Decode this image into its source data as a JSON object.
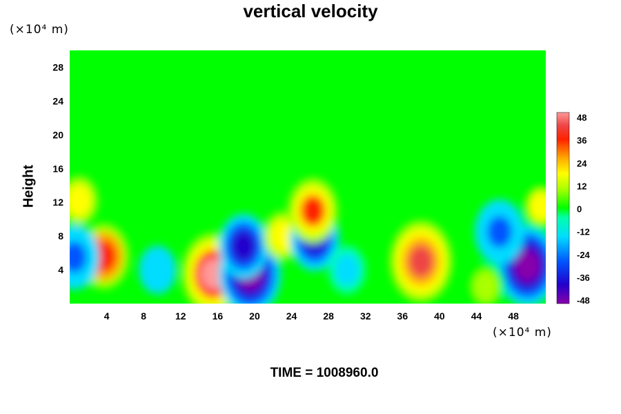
{
  "chart_data": {
    "type": "heatmap",
    "title": "vertical velocity",
    "ylabel": "Height",
    "xlabel": "",
    "x_unit_label": "(×10⁴ m)",
    "y_unit_label": "(×10⁴ m)",
    "xlim": [
      0,
      51.5
    ],
    "ylim": [
      0,
      30
    ],
    "x_ticks": [
      "4",
      "8",
      "12",
      "16",
      "20",
      "24",
      "28",
      "32",
      "36",
      "40",
      "44",
      "48"
    ],
    "y_ticks": [
      "4",
      "8",
      "12",
      "16",
      "20",
      "24",
      "28"
    ],
    "colorbar": {
      "range": [
        -48,
        48
      ],
      "ticks": [
        "48",
        "36",
        "24",
        "12",
        "0",
        "-12",
        "-24",
        "-36",
        "-48"
      ]
    },
    "features": [
      {
        "x": 3.7,
        "y": 5.6,
        "value": 40
      },
      {
        "x": 1.0,
        "y": 12.2,
        "value": 20
      },
      {
        "x": 0.5,
        "y": 5.5,
        "value": -30
      },
      {
        "x": 15.5,
        "y": 3.5,
        "value": 48
      },
      {
        "x": 19.5,
        "y": 3.5,
        "value": -48
      },
      {
        "x": 18.8,
        "y": 6.8,
        "value": -40
      },
      {
        "x": 23.0,
        "y": 8.0,
        "value": 22
      },
      {
        "x": 26.5,
        "y": 7.7,
        "value": -40
      },
      {
        "x": 26.3,
        "y": 11.0,
        "value": 36
      },
      {
        "x": 38.0,
        "y": 5.0,
        "value": 44
      },
      {
        "x": 49.5,
        "y": 4.5,
        "value": -46
      },
      {
        "x": 51.0,
        "y": 11.5,
        "value": 18
      },
      {
        "x": 9.5,
        "y": 4.0,
        "value": -20
      },
      {
        "x": 30.0,
        "y": 4.0,
        "value": -12
      },
      {
        "x": 46.5,
        "y": 8.5,
        "value": -30
      },
      {
        "x": 45.0,
        "y": 2.0,
        "value": 14
      }
    ],
    "grid": false,
    "legend": "colorbar-right"
  },
  "footer": {
    "time_label": "TIME = 1008960.0"
  },
  "colors": {
    "background_field": "#00ff00",
    "positive_max": "#ff9090",
    "negative_max": "#8800aa"
  }
}
